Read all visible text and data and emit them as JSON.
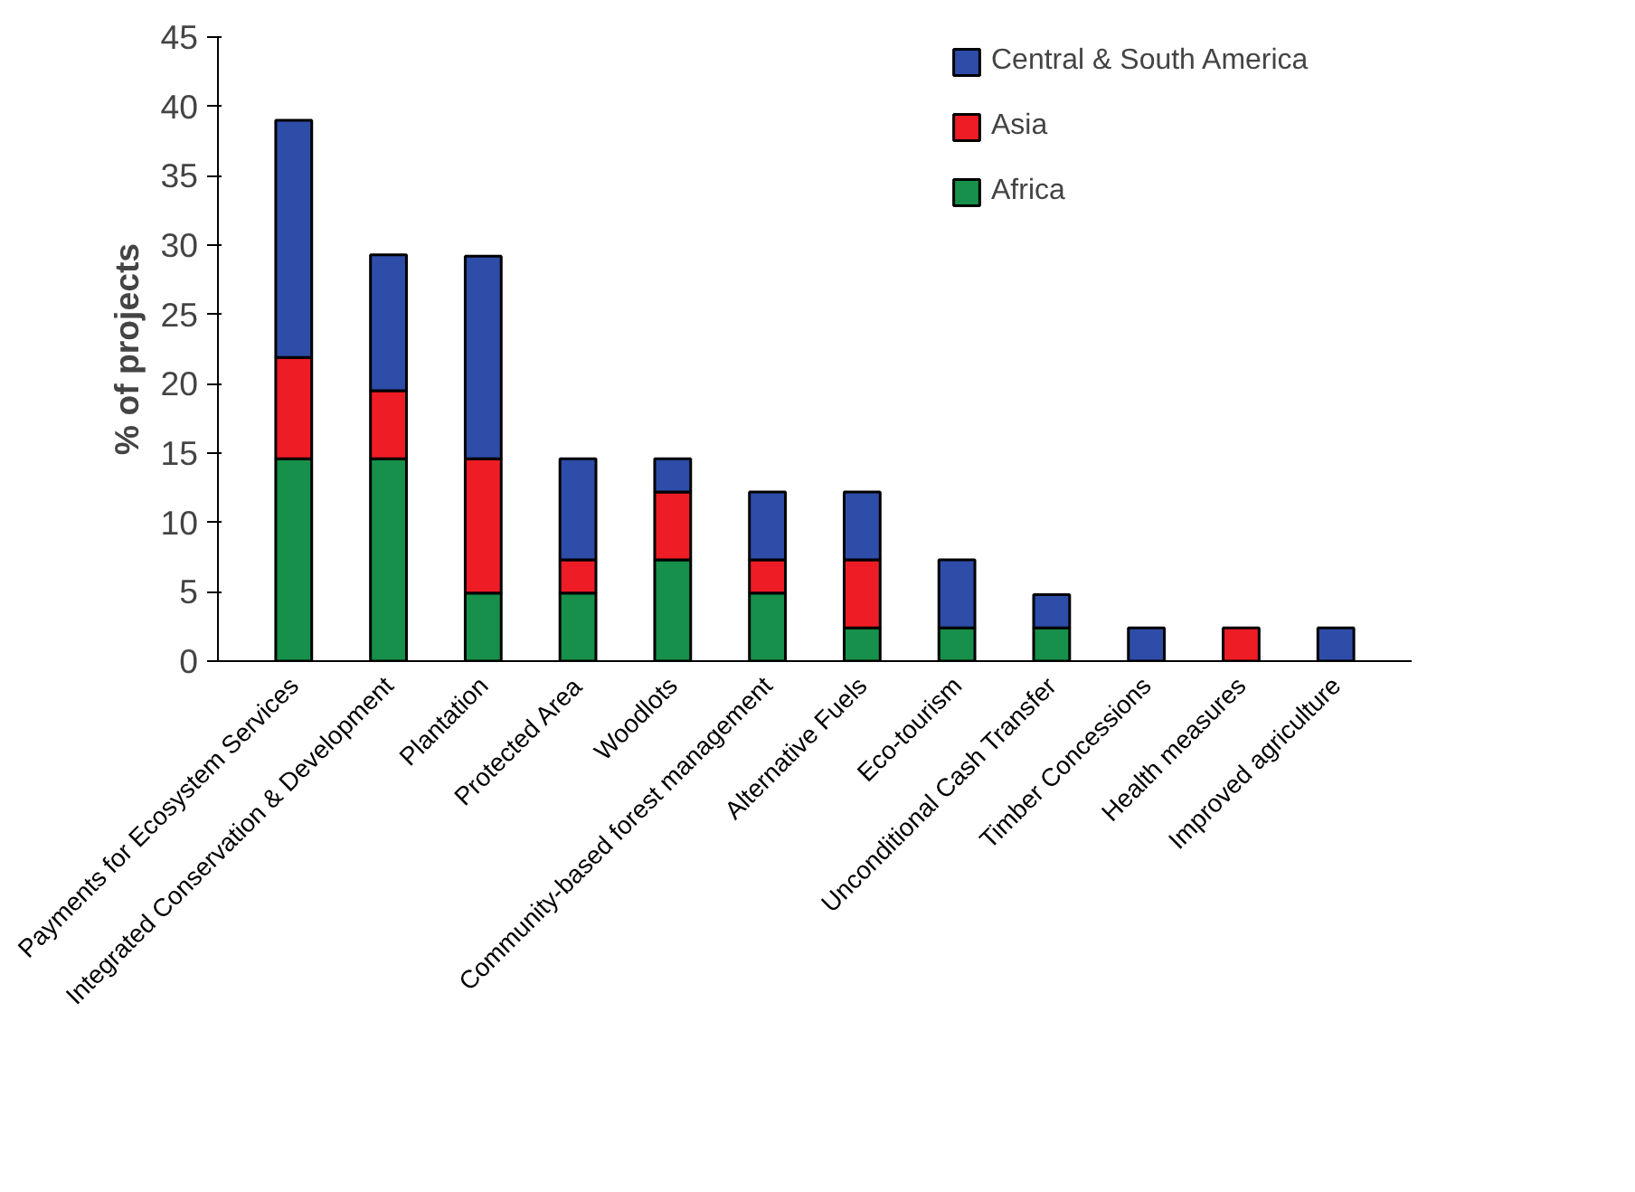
{
  "chart_data": {
    "type": "bar",
    "stacked": true,
    "ylabel": "% of projects",
    "categories": [
      "Payments for Ecosystem Services",
      "Integrated Conservation & Development",
      "Plantation",
      "Protected Area",
      "Woodlots",
      "Community-based forest management",
      "Alternative Fuels",
      "Eco-tourism",
      "Unconditional Cash Transfer",
      "Timber Concessions",
      "Health measures",
      "Improved agriculture"
    ],
    "series": [
      {
        "name": "Africa",
        "color": "#16904a",
        "values": [
          14.6,
          14.6,
          4.9,
          4.9,
          7.3,
          4.9,
          2.4,
          2.4,
          2.4,
          0,
          0,
          0
        ]
      },
      {
        "name": "Asia",
        "color": "#ee1c25",
        "values": [
          7.3,
          4.9,
          9.7,
          2.4,
          4.9,
          2.4,
          4.9,
          0,
          0,
          0,
          2.4,
          0
        ]
      },
      {
        "name": "Central & South America",
        "color": "#2e4da8",
        "values": [
          17.1,
          9.8,
          14.6,
          7.3,
          2.4,
          4.9,
          4.9,
          4.9,
          2.4,
          2.4,
          0,
          2.4
        ]
      }
    ],
    "ylim": [
      0,
      45
    ],
    "yticks": [
      0,
      5,
      10,
      15,
      20,
      25,
      30,
      35,
      40,
      45
    ],
    "grid": false,
    "legend": "right"
  }
}
